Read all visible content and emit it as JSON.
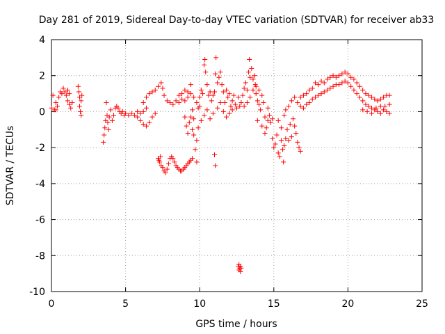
{
  "chart_data": {
    "type": "scatter",
    "title": "Day 281 of 2019, Sidereal Day-to-day VTEC variation (SDTVAR) for receiver ab33",
    "xlabel": "GPS time / hours",
    "ylabel": "SDTVAR / TECUs",
    "xlim": [
      0,
      25
    ],
    "ylim": [
      -10,
      4
    ],
    "xticks": [
      0,
      5,
      10,
      15,
      20,
      25
    ],
    "yticks": [
      -10,
      -8,
      -6,
      -4,
      -2,
      0,
      2,
      4
    ],
    "grid": true,
    "marker": "plus",
    "color": "#ff0000",
    "series": [
      {
        "name": "SDTVAR",
        "points": [
          [
            0.0,
            0.2
          ],
          [
            0.1,
            0.9
          ],
          [
            0.2,
            0.1
          ],
          [
            0.3,
            0.5
          ],
          [
            0.4,
            0.3
          ],
          [
            0.5,
            0.8
          ],
          [
            0.6,
            1.1
          ],
          [
            0.7,
            1.0
          ],
          [
            0.8,
            1.3
          ],
          [
            0.9,
            1.1
          ],
          [
            1.0,
            0.9
          ],
          [
            1.1,
            0.6
          ],
          [
            1.2,
            0.4
          ],
          [
            1.3,
            0.2
          ],
          [
            1.4,
            0.5
          ],
          [
            1.1,
            1.2
          ],
          [
            1.2,
            1.0
          ],
          [
            0.3,
            0.1
          ],
          [
            1.8,
            1.4
          ],
          [
            1.85,
            1.1
          ],
          [
            1.9,
            0.8
          ],
          [
            1.9,
            0.3
          ],
          [
            2.0,
            -0.2
          ],
          [
            1.95,
            0.0
          ],
          [
            2.0,
            0.6
          ],
          [
            2.05,
            0.9
          ],
          [
            3.5,
            -1.7
          ],
          [
            3.55,
            -1.3
          ],
          [
            3.6,
            -0.9
          ],
          [
            3.65,
            -0.5
          ],
          [
            3.7,
            0.5
          ],
          [
            3.75,
            -0.2
          ],
          [
            3.8,
            -0.6
          ],
          [
            3.85,
            -1.0
          ],
          [
            3.9,
            -0.3
          ],
          [
            4.0,
            0.1
          ],
          [
            4.1,
            -0.5
          ],
          [
            4.2,
            -0.2
          ],
          [
            4.3,
            0.2
          ],
          [
            4.4,
            0.3
          ],
          [
            4.5,
            0.2
          ],
          [
            4.6,
            0.0
          ],
          [
            4.7,
            -0.1
          ],
          [
            4.8,
            0.0
          ],
          [
            4.9,
            -0.2
          ],
          [
            5.0,
            -0.1
          ],
          [
            5.2,
            -0.2
          ],
          [
            5.4,
            -0.1
          ],
          [
            5.6,
            -0.2
          ],
          [
            5.8,
            -0.3
          ],
          [
            6.0,
            -0.1
          ],
          [
            6.2,
            0.0
          ],
          [
            6.4,
            0.2
          ],
          [
            5.8,
            0.0
          ],
          [
            6.0,
            -0.5
          ],
          [
            6.2,
            -0.7
          ],
          [
            6.4,
            -0.8
          ],
          [
            6.6,
            -0.6
          ],
          [
            6.8,
            -0.3
          ],
          [
            7.0,
            -0.1
          ],
          [
            6.2,
            0.5
          ],
          [
            6.4,
            0.8
          ],
          [
            6.6,
            1.0
          ],
          [
            6.8,
            1.1
          ],
          [
            7.0,
            1.2
          ],
          [
            7.2,
            1.4
          ],
          [
            7.4,
            1.6
          ],
          [
            7.5,
            1.3
          ],
          [
            7.6,
            0.9
          ],
          [
            7.8,
            0.6
          ],
          [
            8.0,
            0.5
          ],
          [
            8.2,
            0.4
          ],
          [
            8.4,
            0.6
          ],
          [
            8.6,
            0.5
          ],
          [
            8.8,
            0.7
          ],
          [
            9.0,
            0.6
          ],
          [
            9.2,
            0.8
          ],
          [
            9.4,
            1.0
          ],
          [
            9.6,
            0.8
          ],
          [
            9.8,
            0.5
          ],
          [
            10.0,
            0.3
          ],
          [
            7.2,
            -2.6
          ],
          [
            7.3,
            -2.8
          ],
          [
            7.4,
            -3.0
          ],
          [
            7.5,
            -3.1
          ],
          [
            7.6,
            -3.3
          ],
          [
            7.7,
            -3.4
          ],
          [
            7.8,
            -3.2
          ],
          [
            7.9,
            -2.9
          ],
          [
            8.0,
            -2.6
          ],
          [
            8.1,
            -2.5
          ],
          [
            8.2,
            -2.6
          ],
          [
            8.3,
            -2.8
          ],
          [
            8.4,
            -3.0
          ],
          [
            8.5,
            -3.1
          ],
          [
            8.6,
            -3.2
          ],
          [
            8.7,
            -3.3
          ],
          [
            8.8,
            -3.3
          ],
          [
            8.9,
            -3.2
          ],
          [
            9.0,
            -3.1
          ],
          [
            9.1,
            -3.0
          ],
          [
            9.2,
            -2.9
          ],
          [
            9.3,
            -2.8
          ],
          [
            9.4,
            -2.7
          ],
          [
            9.5,
            -2.6
          ],
          [
            7.25,
            -2.7
          ],
          [
            7.35,
            -2.5
          ],
          [
            8.6,
            0.9
          ],
          [
            8.8,
            1.0
          ],
          [
            9.0,
            1.2
          ],
          [
            9.2,
            1.1
          ],
          [
            9.4,
            1.5
          ],
          [
            9.0,
            -0.3
          ],
          [
            9.1,
            -0.8
          ],
          [
            9.2,
            -1.2
          ],
          [
            9.3,
            -0.6
          ],
          [
            9.4,
            -0.3
          ],
          [
            9.5,
            0.1
          ],
          [
            9.6,
            -0.4
          ],
          [
            9.5,
            -1.0
          ],
          [
            9.6,
            -1.3
          ],
          [
            9.7,
            -2.1
          ],
          [
            9.8,
            -1.6
          ],
          [
            9.8,
            -2.8
          ],
          [
            9.9,
            0.2
          ],
          [
            9.9,
            -0.9
          ],
          [
            10.0,
            0.8
          ],
          [
            10.1,
            1.2
          ],
          [
            10.2,
            1.0
          ],
          [
            10.3,
            2.6
          ],
          [
            10.35,
            2.9
          ],
          [
            10.4,
            2.2
          ],
          [
            10.5,
            1.5
          ],
          [
            10.6,
            0.9
          ],
          [
            10.7,
            1.1
          ],
          [
            10.8,
            0.6
          ],
          [
            10.9,
            0.9
          ],
          [
            11.0,
            1.1
          ],
          [
            11.05,
            2.1
          ],
          [
            11.1,
            3.0
          ],
          [
            11.2,
            1.6
          ],
          [
            11.3,
            1.9
          ],
          [
            11.4,
            2.2
          ],
          [
            11.5,
            1.5
          ],
          [
            11.6,
            1.1
          ],
          [
            11.7,
            0.5
          ],
          [
            11.8,
            1.2
          ],
          [
            11.9,
            0.8
          ],
          [
            12.0,
            1.0
          ],
          [
            12.1,
            0.3
          ],
          [
            12.2,
            0.6
          ],
          [
            12.3,
            0.9
          ],
          [
            12.4,
            0.4
          ],
          [
            12.5,
            0.2
          ],
          [
            12.6,
            0.8
          ],
          [
            12.7,
            0.3
          ],
          [
            12.8,
            0.5
          ],
          [
            10.1,
            -0.5
          ],
          [
            10.3,
            -0.2
          ],
          [
            10.5,
            0.1
          ],
          [
            10.7,
            -0.4
          ],
          [
            10.9,
            -0.1
          ],
          [
            11.0,
            -2.4
          ],
          [
            11.05,
            -3.0
          ],
          [
            11.2,
            0.2
          ],
          [
            11.4,
            0.5
          ],
          [
            11.6,
            0.0
          ],
          [
            11.8,
            -0.3
          ],
          [
            12.0,
            -0.1
          ],
          [
            12.2,
            0.1
          ],
          [
            12.9,
            0.9
          ],
          [
            13.0,
            1.3
          ],
          [
            13.1,
            1.6
          ],
          [
            13.2,
            1.2
          ],
          [
            13.3,
            2.2
          ],
          [
            13.35,
            2.9
          ],
          [
            13.4,
            1.9
          ],
          [
            13.5,
            2.4
          ],
          [
            13.6,
            1.8
          ],
          [
            13.7,
            2.0
          ],
          [
            13.75,
            1.5
          ],
          [
            13.8,
            1.0
          ],
          [
            13.9,
            0.6
          ],
          [
            14.0,
            0.4
          ],
          [
            14.1,
            0.1
          ],
          [
            14.2,
            0.9
          ],
          [
            14.3,
            0.5
          ],
          [
            14.4,
            -0.3
          ],
          [
            14.5,
            -0.9
          ],
          [
            14.6,
            -0.5
          ],
          [
            14.7,
            -0.2
          ],
          [
            14.8,
            -0.6
          ],
          [
            14.9,
            -0.4
          ],
          [
            13.0,
            0.3
          ],
          [
            13.2,
            0.5
          ],
          [
            13.4,
            0.8
          ],
          [
            13.6,
            1.2
          ],
          [
            13.8,
            1.4
          ],
          [
            14.0,
            1.2
          ],
          [
            13.9,
            -0.5
          ],
          [
            14.2,
            -0.8
          ],
          [
            14.4,
            -1.2
          ],
          [
            14.6,
            0.2
          ],
          [
            12.6,
            -8.6
          ],
          [
            12.65,
            -8.8
          ],
          [
            12.7,
            -8.7
          ],
          [
            12.75,
            -8.9
          ],
          [
            12.8,
            -8.7
          ],
          [
            12.65,
            -8.5
          ],
          [
            12.75,
            -8.6
          ],
          [
            14.9,
            -1.5
          ],
          [
            15.0,
            -2.0
          ],
          [
            15.1,
            -1.8
          ],
          [
            15.2,
            -1.3
          ],
          [
            15.3,
            -2.3
          ],
          [
            15.4,
            -2.5
          ],
          [
            15.5,
            -1.6
          ],
          [
            15.6,
            -2.1
          ],
          [
            15.65,
            -2.8
          ],
          [
            15.7,
            -1.9
          ],
          [
            15.8,
            -1.5
          ],
          [
            15.9,
            -1.0
          ],
          [
            16.0,
            -1.6
          ],
          [
            16.1,
            -0.7
          ],
          [
            16.2,
            -1.4
          ],
          [
            16.3,
            -0.4
          ],
          [
            16.4,
            -0.8
          ],
          [
            16.5,
            -1.2
          ],
          [
            16.6,
            -1.7
          ],
          [
            16.7,
            -2.0
          ],
          [
            16.8,
            -2.2
          ],
          [
            15.3,
            -0.5
          ],
          [
            15.5,
            -0.9
          ],
          [
            15.7,
            -0.2
          ],
          [
            15.8,
            0.1
          ],
          [
            16.0,
            0.3
          ],
          [
            16.2,
            0.6
          ],
          [
            16.4,
            0.8
          ],
          [
            16.6,
            0.5
          ],
          [
            16.8,
            0.8
          ],
          [
            17.0,
            0.9
          ],
          [
            17.2,
            1.0
          ],
          [
            17.4,
            1.2
          ],
          [
            17.6,
            1.3
          ],
          [
            17.8,
            1.6
          ],
          [
            18.0,
            1.5
          ],
          [
            18.2,
            1.7
          ],
          [
            18.4,
            1.6
          ],
          [
            18.6,
            1.8
          ],
          [
            18.8,
            1.9
          ],
          [
            19.0,
            2.0
          ],
          [
            19.2,
            1.9
          ],
          [
            19.4,
            2.0
          ],
          [
            19.6,
            2.1
          ],
          [
            19.8,
            2.2
          ],
          [
            20.0,
            2.1
          ],
          [
            20.2,
            1.9
          ],
          [
            20.4,
            1.8
          ],
          [
            20.6,
            1.6
          ],
          [
            20.8,
            1.4
          ],
          [
            21.0,
            1.2
          ],
          [
            21.2,
            1.0
          ],
          [
            21.4,
            0.9
          ],
          [
            21.6,
            0.8
          ],
          [
            21.8,
            0.7
          ],
          [
            22.0,
            0.6
          ],
          [
            22.2,
            0.7
          ],
          [
            22.4,
            0.8
          ],
          [
            22.6,
            0.9
          ],
          [
            22.8,
            0.9
          ],
          [
            16.8,
            0.3
          ],
          [
            17.0,
            0.2
          ],
          [
            17.2,
            0.4
          ],
          [
            17.4,
            0.5
          ],
          [
            17.6,
            0.7
          ],
          [
            17.8,
            0.8
          ],
          [
            18.0,
            0.9
          ],
          [
            18.2,
            1.0
          ],
          [
            18.4,
            1.1
          ],
          [
            18.6,
            1.2
          ],
          [
            18.8,
            1.3
          ],
          [
            19.0,
            1.4
          ],
          [
            19.2,
            1.5
          ],
          [
            19.4,
            1.5
          ],
          [
            19.6,
            1.6
          ],
          [
            19.8,
            1.7
          ],
          [
            20.0,
            1.6
          ],
          [
            20.2,
            1.4
          ],
          [
            20.4,
            1.2
          ],
          [
            20.6,
            1.0
          ],
          [
            20.8,
            0.8
          ],
          [
            21.0,
            0.6
          ],
          [
            21.2,
            0.4
          ],
          [
            21.4,
            0.3
          ],
          [
            21.6,
            0.2
          ],
          [
            21.8,
            0.1
          ],
          [
            22.0,
            0.0
          ],
          [
            22.2,
            -0.1
          ],
          [
            22.4,
            0.1
          ],
          [
            22.6,
            0.0
          ],
          [
            22.8,
            -0.1
          ],
          [
            21.0,
            0.1
          ],
          [
            21.3,
            0.0
          ],
          [
            21.6,
            -0.1
          ],
          [
            21.9,
            0.2
          ],
          [
            22.2,
            0.3
          ],
          [
            22.5,
            0.3
          ],
          [
            22.8,
            0.4
          ]
        ]
      }
    ]
  }
}
